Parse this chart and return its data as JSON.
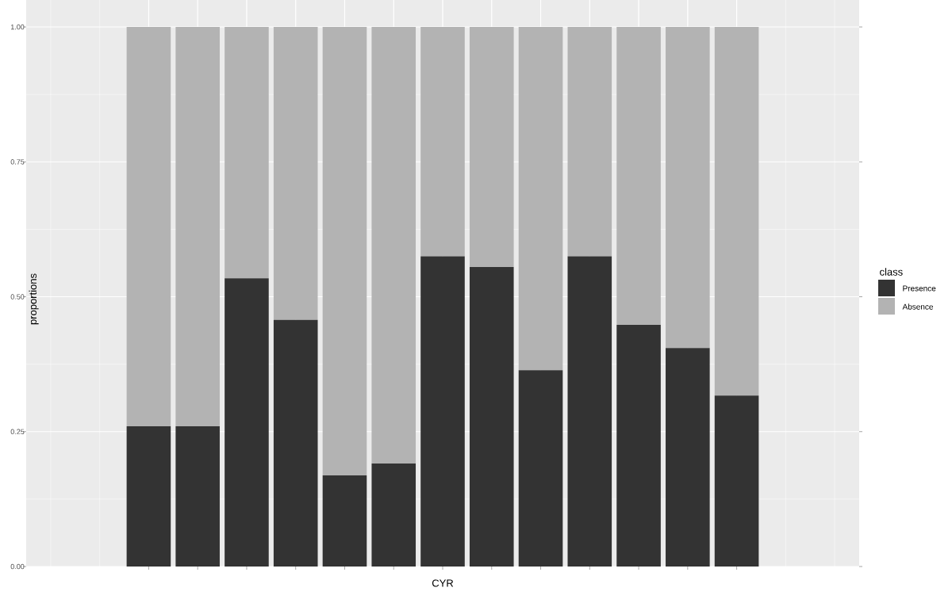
{
  "chart_data": {
    "type": "bar",
    "stacked": true,
    "xlabel": "CYR",
    "ylabel": "proportions",
    "legend_title": "class",
    "categories": [
      null,
      null,
      null,
      null,
      null,
      null,
      null,
      null,
      null,
      null,
      null,
      null,
      null,
      null,
      null,
      null,
      null
    ],
    "series": [
      {
        "name": "Presence",
        "color": "#333333",
        "values": [
          null,
          null,
          0.26,
          0.26,
          0.534,
          0.457,
          0.169,
          0.191,
          0.575,
          0.555,
          0.364,
          0.575,
          0.448,
          0.405,
          0.317,
          null,
          null
        ]
      },
      {
        "name": "Absence",
        "color": "#b3b3b3",
        "values": [
          null,
          null,
          0.74,
          0.74,
          0.466,
          0.543,
          0.831,
          0.809,
          0.425,
          0.445,
          0.636,
          0.425,
          0.552,
          0.595,
          0.683,
          null,
          null
        ]
      }
    ],
    "ylim": [
      0,
      1.05
    ],
    "yticks": [
      {
        "value": 0,
        "label": "0.00"
      },
      {
        "value": 0.25,
        "label": "0.25"
      },
      {
        "value": 0.5,
        "label": "0.50"
      },
      {
        "value": 0.75,
        "label": "0.75"
      },
      {
        "value": 1,
        "label": "1.00"
      }
    ],
    "grid": true,
    "legend": "right",
    "tick_labels": "y"
  }
}
